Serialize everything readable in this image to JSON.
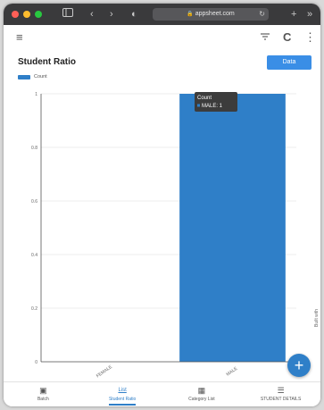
{
  "browser": {
    "url": "appsheet.com",
    "window_controls": [
      {
        "name": "close",
        "color": "#ff5f57"
      },
      {
        "name": "minimize",
        "color": "#febc2e"
      },
      {
        "name": "maximize",
        "color": "#28c840"
      }
    ],
    "icons": {
      "sidebar": "sidebar-icon",
      "back": "‹",
      "forward": "›",
      "privacy": "◐",
      "lock": "🔒",
      "reload": "↻",
      "new_tab": "+",
      "more": "»"
    }
  },
  "appbar": {
    "menu_icon": "≡",
    "filter_icon": "⚲",
    "sync_icon": "C",
    "more_icon": "⋮"
  },
  "page": {
    "title": "Student Ratio",
    "filter_button": "Data"
  },
  "legend": {
    "label": "Count",
    "color": "#2f7fc8"
  },
  "chart_data": {
    "type": "bar",
    "categories": [
      "FEMALE",
      "MALE"
    ],
    "series": [
      {
        "name": "Count",
        "values": [
          0,
          1
        ]
      }
    ],
    "ylim": [
      0,
      1
    ],
    "yticks": [
      "0",
      "0.2",
      "0.4",
      "0.6",
      "0.8",
      "1"
    ],
    "bar_color": "#2f7fc8",
    "grid": true,
    "tooltip": {
      "title": "Count",
      "text": "MALE: 1"
    }
  },
  "fab": {
    "icon": "+"
  },
  "side_label": "Built with",
  "bottom_nav": [
    {
      "label": "Batch",
      "icon": "▣",
      "active": false
    },
    {
      "label": "Student Ratio",
      "icon": "List",
      "active": true
    },
    {
      "label": "Category List",
      "icon": "▦",
      "active": false
    },
    {
      "label": "STUDENT DETAILS",
      "icon": "☰",
      "active": false
    }
  ]
}
